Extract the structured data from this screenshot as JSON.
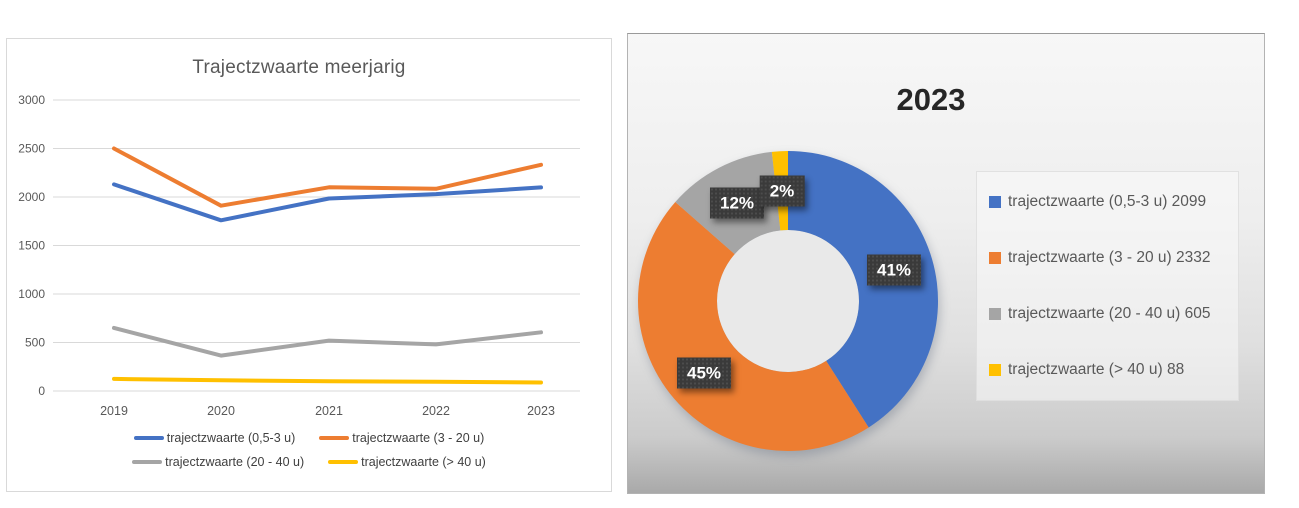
{
  "chart_data": [
    {
      "type": "line",
      "panel": "left",
      "title": "Trajectzwaarte meerjarig",
      "categories": [
        "2019",
        "2020",
        "2021",
        "2022",
        "2023"
      ],
      "series": [
        {
          "name": "trajectzwaarte (0,5-3 u)",
          "color": "#4472C4",
          "values": [
            2130,
            1760,
            1985,
            2030,
            2099
          ]
        },
        {
          "name": "trajectzwaarte (3 - 20 u)",
          "color": "#ED7D31",
          "values": [
            2500,
            1910,
            2100,
            2085,
            2332
          ]
        },
        {
          "name": "trajectzwaarte (20 - 40 u)",
          "color": "#A5A5A5",
          "values": [
            650,
            365,
            520,
            480,
            605
          ]
        },
        {
          "name": "trajectzwaarte (> 40 u)",
          "color": "#FFC000",
          "values": [
            125,
            110,
            100,
            95,
            88
          ]
        }
      ],
      "ylim": [
        0,
        3000
      ],
      "yticks": [
        0,
        500,
        1000,
        1500,
        2000,
        2500,
        3000
      ],
      "grid": true,
      "legend_position": "bottom",
      "legend_rows": [
        [
          0,
          1
        ],
        [
          2,
          3
        ]
      ]
    },
    {
      "type": "donut",
      "panel": "right",
      "title": "2023",
      "start_angle_deg": 0,
      "clockwise": true,
      "slices": [
        {
          "name": "trajectzwaarte (0,5-3 u)",
          "value": 2099,
          "pct_label": "41%",
          "legend_label": "trajectzwaarte (0,5-3 u) 2099",
          "color": "#4472C4"
        },
        {
          "name": "trajectzwaarte (3 - 20 u)",
          "value": 2332,
          "pct_label": "45%",
          "legend_label": "trajectzwaarte (3 - 20 u) 2332",
          "color": "#ED7D31"
        },
        {
          "name": "trajectzwaarte (20 - 40 u)",
          "value": 605,
          "pct_label": "12%",
          "legend_label": "trajectzwaarte (20 - 40 u) 605",
          "color": "#A5A5A5"
        },
        {
          "name": "trajectzwaarte (> 40 u)",
          "value": 88,
          "pct_label": "2%",
          "legend_label": "trajectzwaarte (> 40 u) 88",
          "color": "#FFC000"
        }
      ],
      "legend_position": "right",
      "label_style": {
        "bg": "#3A3A3A",
        "text_color": "#FFFFFF"
      },
      "hole_color": "#E9E9E9"
    }
  ]
}
